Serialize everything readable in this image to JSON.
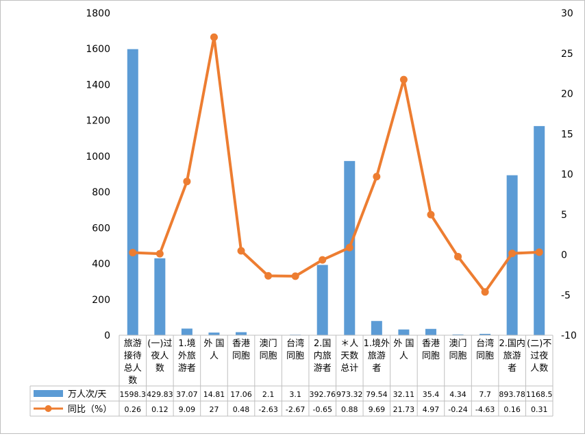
{
  "colors": {
    "bar": "#5b9bd5",
    "line": "#ed7d31",
    "grid": "#d9d9d9",
    "axis": "#bfbfbf"
  },
  "chart_data": {
    "type": "bar",
    "categories": [
      [
        "旅游",
        "接待",
        "总人",
        "数"
      ],
      [
        "(一)过",
        "夜人",
        "数"
      ],
      [
        "1.境",
        "外旅",
        "游者"
      ],
      [
        "外 国",
        "人"
      ],
      [
        "香港",
        "同胞"
      ],
      [
        "澳门",
        "同胞"
      ],
      [
        "台湾",
        "同胞"
      ],
      [
        "2.国",
        "内旅",
        "游者"
      ],
      [
        "＊人",
        "天数",
        "总计"
      ],
      [
        "1.境外",
        "旅游",
        "者"
      ],
      [
        "外 国",
        "人"
      ],
      [
        "香港",
        "同胞"
      ],
      [
        "澳门",
        "同胞"
      ],
      [
        "台湾",
        "同胞"
      ],
      [
        "2.国内",
        "旅游",
        "者"
      ],
      [
        "(二)不",
        "过夜",
        "人数"
      ]
    ],
    "series": [
      {
        "name": "万人次/天",
        "kind": "bar",
        "axis": "left",
        "values": [
          1598.3,
          429.83,
          37.07,
          14.81,
          17.06,
          2.1,
          3.1,
          392.76,
          973.32,
          79.54,
          32.11,
          35.4,
          4.34,
          7.7,
          893.78,
          1168.5
        ],
        "labels": [
          "1598.3",
          "429.83",
          "37.07",
          "14.81",
          "17.06",
          "2.1",
          "3.1",
          "392.76",
          "973.32",
          "79.54",
          "32.11",
          "35.4",
          "4.34",
          "7.7",
          "893.78",
          "1168.5"
        ]
      },
      {
        "name": "同比（%）",
        "kind": "line",
        "axis": "right",
        "values": [
          0.26,
          0.12,
          9.09,
          27,
          0.48,
          -2.63,
          -2.67,
          -0.65,
          0.88,
          9.69,
          21.73,
          4.97,
          -0.24,
          -4.63,
          0.16,
          0.31
        ],
        "labels": [
          "0.26",
          "0.12",
          "9.09",
          "27",
          "0.48",
          "-2.63",
          "-2.67",
          "-0.65",
          "0.88",
          "9.69",
          "21.73",
          "4.97",
          "-0.24",
          "-4.63",
          "0.16",
          "0.31"
        ]
      }
    ],
    "y_left": {
      "min": 0,
      "max": 1800,
      "step": 200,
      "ticks": [
        "0",
        "200",
        "400",
        "600",
        "800",
        "1000",
        "1200",
        "1400",
        "1600",
        "1800"
      ]
    },
    "y_right": {
      "min": -10,
      "max": 30,
      "step": 5,
      "ticks": [
        "-10",
        "-5",
        "0",
        "5",
        "10",
        "15",
        "20",
        "25",
        "30"
      ]
    },
    "grid": false,
    "legend": "data-table"
  }
}
